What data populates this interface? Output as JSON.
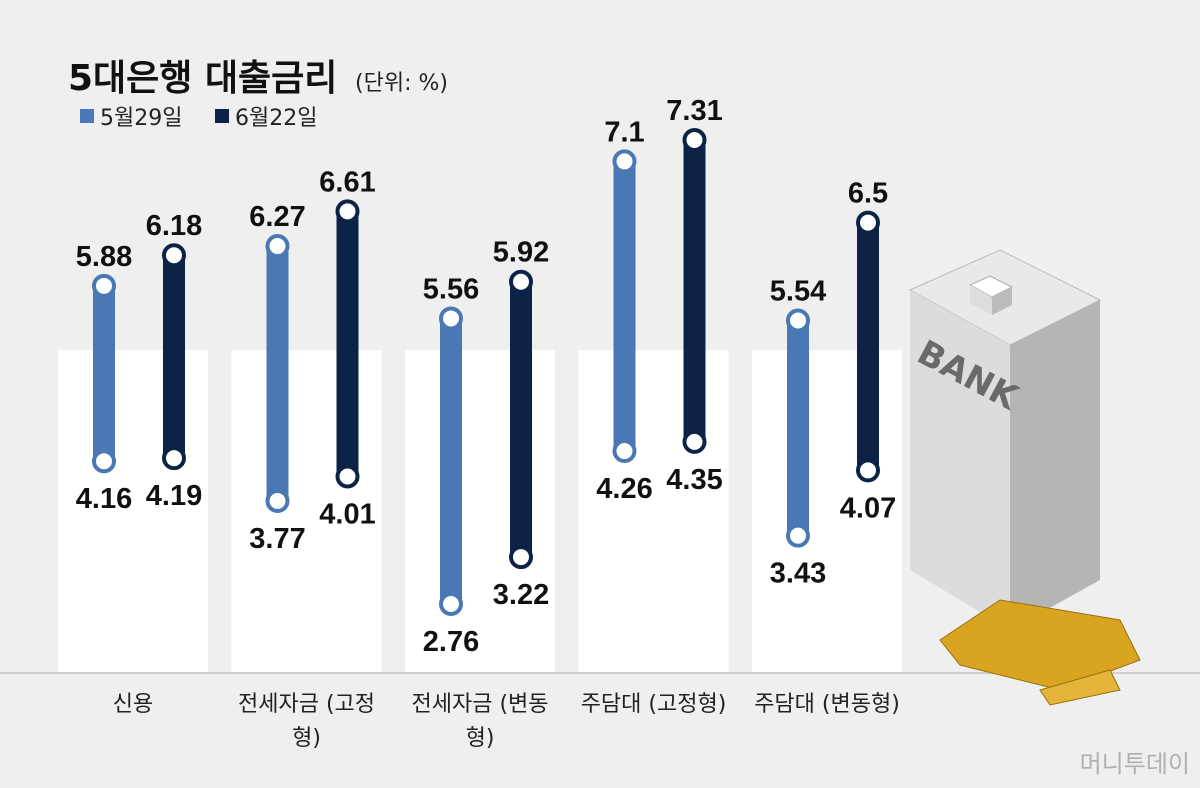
{
  "chart_data": {
    "type": "range-bar",
    "title": "5대은행 대출금리",
    "subtitle": "(단위: %)",
    "categories": [
      "신용",
      "전세자금 (고정형)",
      "전세자금 (변동형)",
      "주담대 (고정형)",
      "주담대 (변동형)"
    ],
    "series": [
      {
        "name": "5월29일",
        "color": "#4a78b4",
        "low": [
          4.16,
          3.77,
          2.76,
          4.26,
          3.43
        ],
        "high": [
          5.88,
          6.27,
          5.56,
          7.1,
          5.54
        ]
      },
      {
        "name": "6월22일",
        "color": "#0c2346",
        "low": [
          4.19,
          4.01,
          3.22,
          4.35,
          4.07
        ],
        "high": [
          6.18,
          6.61,
          5.92,
          7.31,
          6.5
        ]
      }
    ],
    "watermark": "머니투데이"
  }
}
